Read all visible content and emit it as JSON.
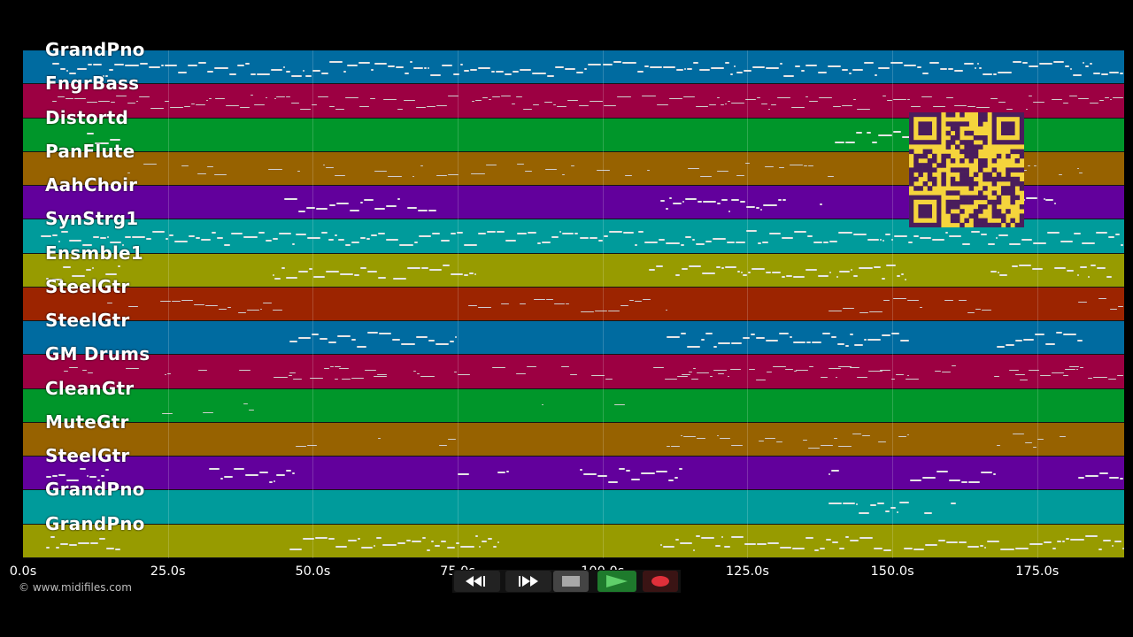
{
  "tracks": [
    {
      "name": "GrandPno",
      "color": "#006ba0"
    },
    {
      "name": "FngrBass",
      "color": "#9c0042"
    },
    {
      "name": "Distortd",
      "color": "#00962a"
    },
    {
      "name": "PanFlute",
      "color": "#976200"
    },
    {
      "name": "AahChoir",
      "color": "#62009c"
    },
    {
      "name": "SynStrg1",
      "color": "#009b9b"
    },
    {
      "name": "Ensmble1",
      "color": "#979b00"
    },
    {
      "name": "SteelGtr",
      "color": "#9c2400"
    },
    {
      "name": "SteelGtr",
      "color": "#006ba0"
    },
    {
      "name": "GM Drums",
      "color": "#9c0042"
    },
    {
      "name": "CleanGtr",
      "color": "#00962a"
    },
    {
      "name": "MuteGtr",
      "color": "#976200"
    },
    {
      "name": "SteelGtr",
      "color": "#62009c"
    },
    {
      "name": "GrandPno",
      "color": "#009b9b"
    },
    {
      "name": "GrandPno",
      "color": "#979b00"
    }
  ],
  "time_axis": {
    "ticks": [
      "0.0s",
      "25.0s",
      "50.0s",
      "75.0s",
      "100.0s",
      "125.0s",
      "150.0s",
      "175.0s"
    ]
  },
  "copyright": "© www.midifiles.com",
  "controls": [
    {
      "name": "rewind-button",
      "icon": "rewind-icon"
    },
    {
      "name": "fast-forward-button",
      "icon": "fast-forward-icon"
    },
    {
      "name": "stop-button",
      "icon": "stop-icon"
    },
    {
      "name": "play-button",
      "icon": "play-icon"
    },
    {
      "name": "record-button",
      "icon": "record-icon"
    }
  ],
  "qr_icon": "qr-code-icon"
}
